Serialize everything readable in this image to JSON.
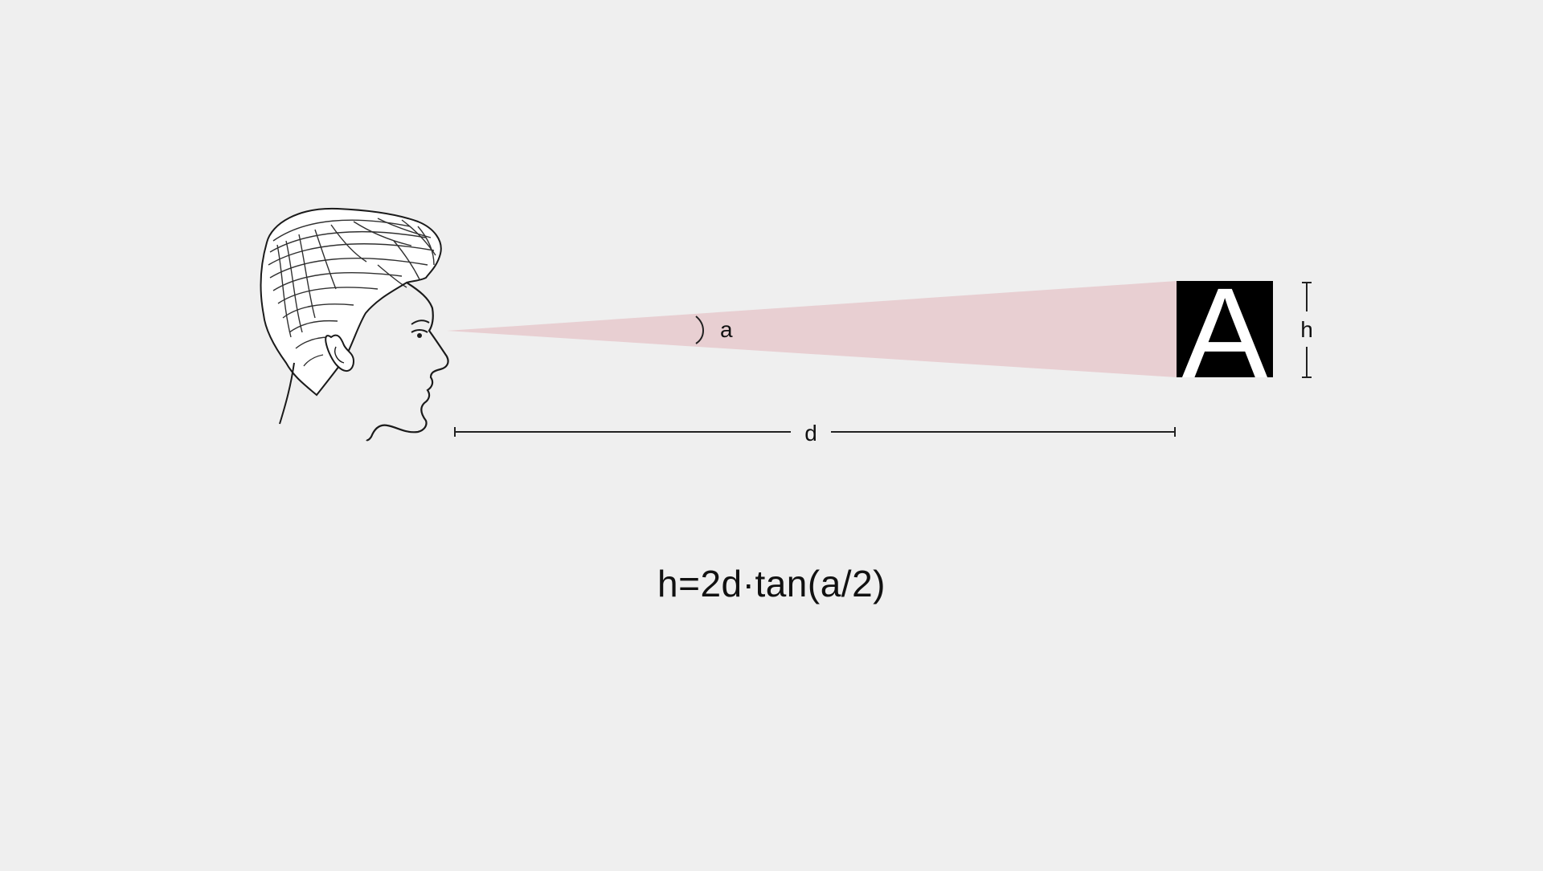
{
  "diagram": {
    "angle_label": "a",
    "distance_label": "d",
    "height_label": "h",
    "target_letter": "A",
    "formula": "h=2d·tan(a/2)",
    "icons": {
      "viewer": "head-profile-icon",
      "target": "letter-a-block-icon"
    },
    "colors": {
      "background": "#efefef",
      "cone_fill": "#e8cfd2",
      "line": "#222222",
      "target_block": "#000000",
      "target_letter": "#ffffff"
    }
  }
}
